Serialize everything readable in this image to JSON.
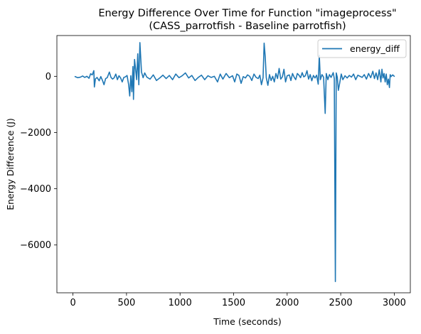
{
  "chart_data": {
    "type": "line",
    "title": "Energy Difference Over Time for Function \"imageprocess\"",
    "subtitle": "(CASS_parrotfish - Baseline parrotfish)",
    "xlabel": "Time (seconds)",
    "ylabel": "Energy Difference (J)",
    "xlim": [
      -150,
      3150
    ],
    "ylim": [
      -7700,
      1450
    ],
    "xticks": [
      0,
      500,
      1000,
      1500,
      2000,
      2500,
      3000
    ],
    "xtick_labels": [
      "0",
      "500",
      "1000",
      "1500",
      "2000",
      "2500",
      "3000"
    ],
    "yticks": [
      -6000,
      -4000,
      -2000,
      0
    ],
    "ytick_labels": [
      "−6000",
      "−4000",
      "−2000",
      "0"
    ],
    "grid": false,
    "legend_position": "upper right",
    "color": "#1f77b4",
    "series": [
      {
        "name": "energy_diff",
        "points": [
          [
            20,
            -10
          ],
          [
            45,
            -50
          ],
          [
            70,
            -30
          ],
          [
            90,
            10
          ],
          [
            110,
            -40
          ],
          [
            130,
            0
          ],
          [
            150,
            -70
          ],
          [
            165,
            90
          ],
          [
            180,
            50
          ],
          [
            195,
            200
          ],
          [
            200,
            -380
          ],
          [
            210,
            -90
          ],
          [
            225,
            -40
          ],
          [
            245,
            -160
          ],
          [
            260,
            -10
          ],
          [
            275,
            -140
          ],
          [
            290,
            -300
          ],
          [
            305,
            -80
          ],
          [
            320,
            -50
          ],
          [
            340,
            150
          ],
          [
            355,
            -40
          ],
          [
            370,
            -100
          ],
          [
            385,
            -50
          ],
          [
            400,
            80
          ],
          [
            415,
            -120
          ],
          [
            430,
            20
          ],
          [
            445,
            -60
          ],
          [
            460,
            -200
          ],
          [
            475,
            -40
          ],
          [
            490,
            -20
          ],
          [
            505,
            30
          ],
          [
            520,
            -300
          ],
          [
            530,
            -700
          ],
          [
            540,
            20
          ],
          [
            550,
            -550
          ],
          [
            560,
            350
          ],
          [
            565,
            -820
          ],
          [
            575,
            600
          ],
          [
            585,
            250
          ],
          [
            595,
            -120
          ],
          [
            605,
            800
          ],
          [
            615,
            -300
          ],
          [
            625,
            1200
          ],
          [
            640,
            150
          ],
          [
            655,
            -50
          ],
          [
            670,
            120
          ],
          [
            690,
            -30
          ],
          [
            720,
            -100
          ],
          [
            750,
            50
          ],
          [
            780,
            -150
          ],
          [
            810,
            -60
          ],
          [
            840,
            40
          ],
          [
            870,
            -80
          ],
          [
            900,
            30
          ],
          [
            930,
            -120
          ],
          [
            960,
            80
          ],
          [
            990,
            -50
          ],
          [
            1020,
            20
          ],
          [
            1050,
            120
          ],
          [
            1080,
            -60
          ],
          [
            1110,
            30
          ],
          [
            1140,
            -150
          ],
          [
            1170,
            -40
          ],
          [
            1200,
            40
          ],
          [
            1230,
            -120
          ],
          [
            1260,
            20
          ],
          [
            1290,
            -40
          ],
          [
            1320,
            0
          ],
          [
            1350,
            -200
          ],
          [
            1375,
            80
          ],
          [
            1400,
            -100
          ],
          [
            1430,
            100
          ],
          [
            1460,
            -50
          ],
          [
            1490,
            20
          ],
          [
            1510,
            -200
          ],
          [
            1530,
            80
          ],
          [
            1550,
            30
          ],
          [
            1570,
            -250
          ],
          [
            1590,
            -10
          ],
          [
            1610,
            -60
          ],
          [
            1630,
            50
          ],
          [
            1650,
            0
          ],
          [
            1670,
            -150
          ],
          [
            1690,
            80
          ],
          [
            1710,
            -40
          ],
          [
            1730,
            -80
          ],
          [
            1745,
            40
          ],
          [
            1760,
            -300
          ],
          [
            1775,
            -50
          ],
          [
            1785,
            1180
          ],
          [
            1795,
            700
          ],
          [
            1805,
            -50
          ],
          [
            1820,
            -320
          ],
          [
            1835,
            60
          ],
          [
            1850,
            -150
          ],
          [
            1865,
            0
          ],
          [
            1880,
            -200
          ],
          [
            1895,
            100
          ],
          [
            1910,
            -80
          ],
          [
            1925,
            280
          ],
          [
            1940,
            -100
          ],
          [
            1955,
            -20
          ],
          [
            1970,
            250
          ],
          [
            1985,
            -200
          ],
          [
            2000,
            20
          ],
          [
            2020,
            50
          ],
          [
            2035,
            -150
          ],
          [
            2050,
            100
          ],
          [
            2065,
            -30
          ],
          [
            2080,
            -120
          ],
          [
            2095,
            100
          ],
          [
            2110,
            40
          ],
          [
            2125,
            -50
          ],
          [
            2140,
            130
          ],
          [
            2155,
            -20
          ],
          [
            2170,
            20
          ],
          [
            2185,
            200
          ],
          [
            2200,
            -100
          ],
          [
            2215,
            60
          ],
          [
            2230,
            -160
          ],
          [
            2245,
            30
          ],
          [
            2260,
            -60
          ],
          [
            2275,
            40
          ],
          [
            2290,
            -280
          ],
          [
            2300,
            750
          ],
          [
            2310,
            -120
          ],
          [
            2325,
            60
          ],
          [
            2340,
            -30
          ],
          [
            2355,
            -1320
          ],
          [
            2365,
            100
          ],
          [
            2380,
            -120
          ],
          [
            2395,
            60
          ],
          [
            2410,
            -40
          ],
          [
            2430,
            130
          ],
          [
            2440,
            -80
          ],
          [
            2450,
            -7300
          ],
          [
            2458,
            120
          ],
          [
            2468,
            -30
          ],
          [
            2478,
            -500
          ],
          [
            2490,
            -250
          ],
          [
            2505,
            80
          ],
          [
            2520,
            -120
          ],
          [
            2540,
            20
          ],
          [
            2560,
            -60
          ],
          [
            2580,
            30
          ],
          [
            2600,
            -30
          ],
          [
            2620,
            80
          ],
          [
            2640,
            -120
          ],
          [
            2660,
            40
          ],
          [
            2680,
            0
          ],
          [
            2700,
            -40
          ],
          [
            2720,
            60
          ],
          [
            2740,
            -100
          ],
          [
            2760,
            100
          ],
          [
            2780,
            -50
          ],
          [
            2800,
            180
          ],
          [
            2815,
            -80
          ],
          [
            2830,
            120
          ],
          [
            2845,
            -120
          ],
          [
            2860,
            230
          ],
          [
            2875,
            -200
          ],
          [
            2885,
            250
          ],
          [
            2895,
            -60
          ],
          [
            2905,
            100
          ],
          [
            2915,
            -200
          ],
          [
            2925,
            80
          ],
          [
            2935,
            -300
          ],
          [
            2945,
            -100
          ],
          [
            2955,
            -400
          ],
          [
            2962,
            60
          ],
          [
            2970,
            -10
          ],
          [
            2985,
            50
          ],
          [
            3000,
            0
          ]
        ]
      }
    ]
  }
}
